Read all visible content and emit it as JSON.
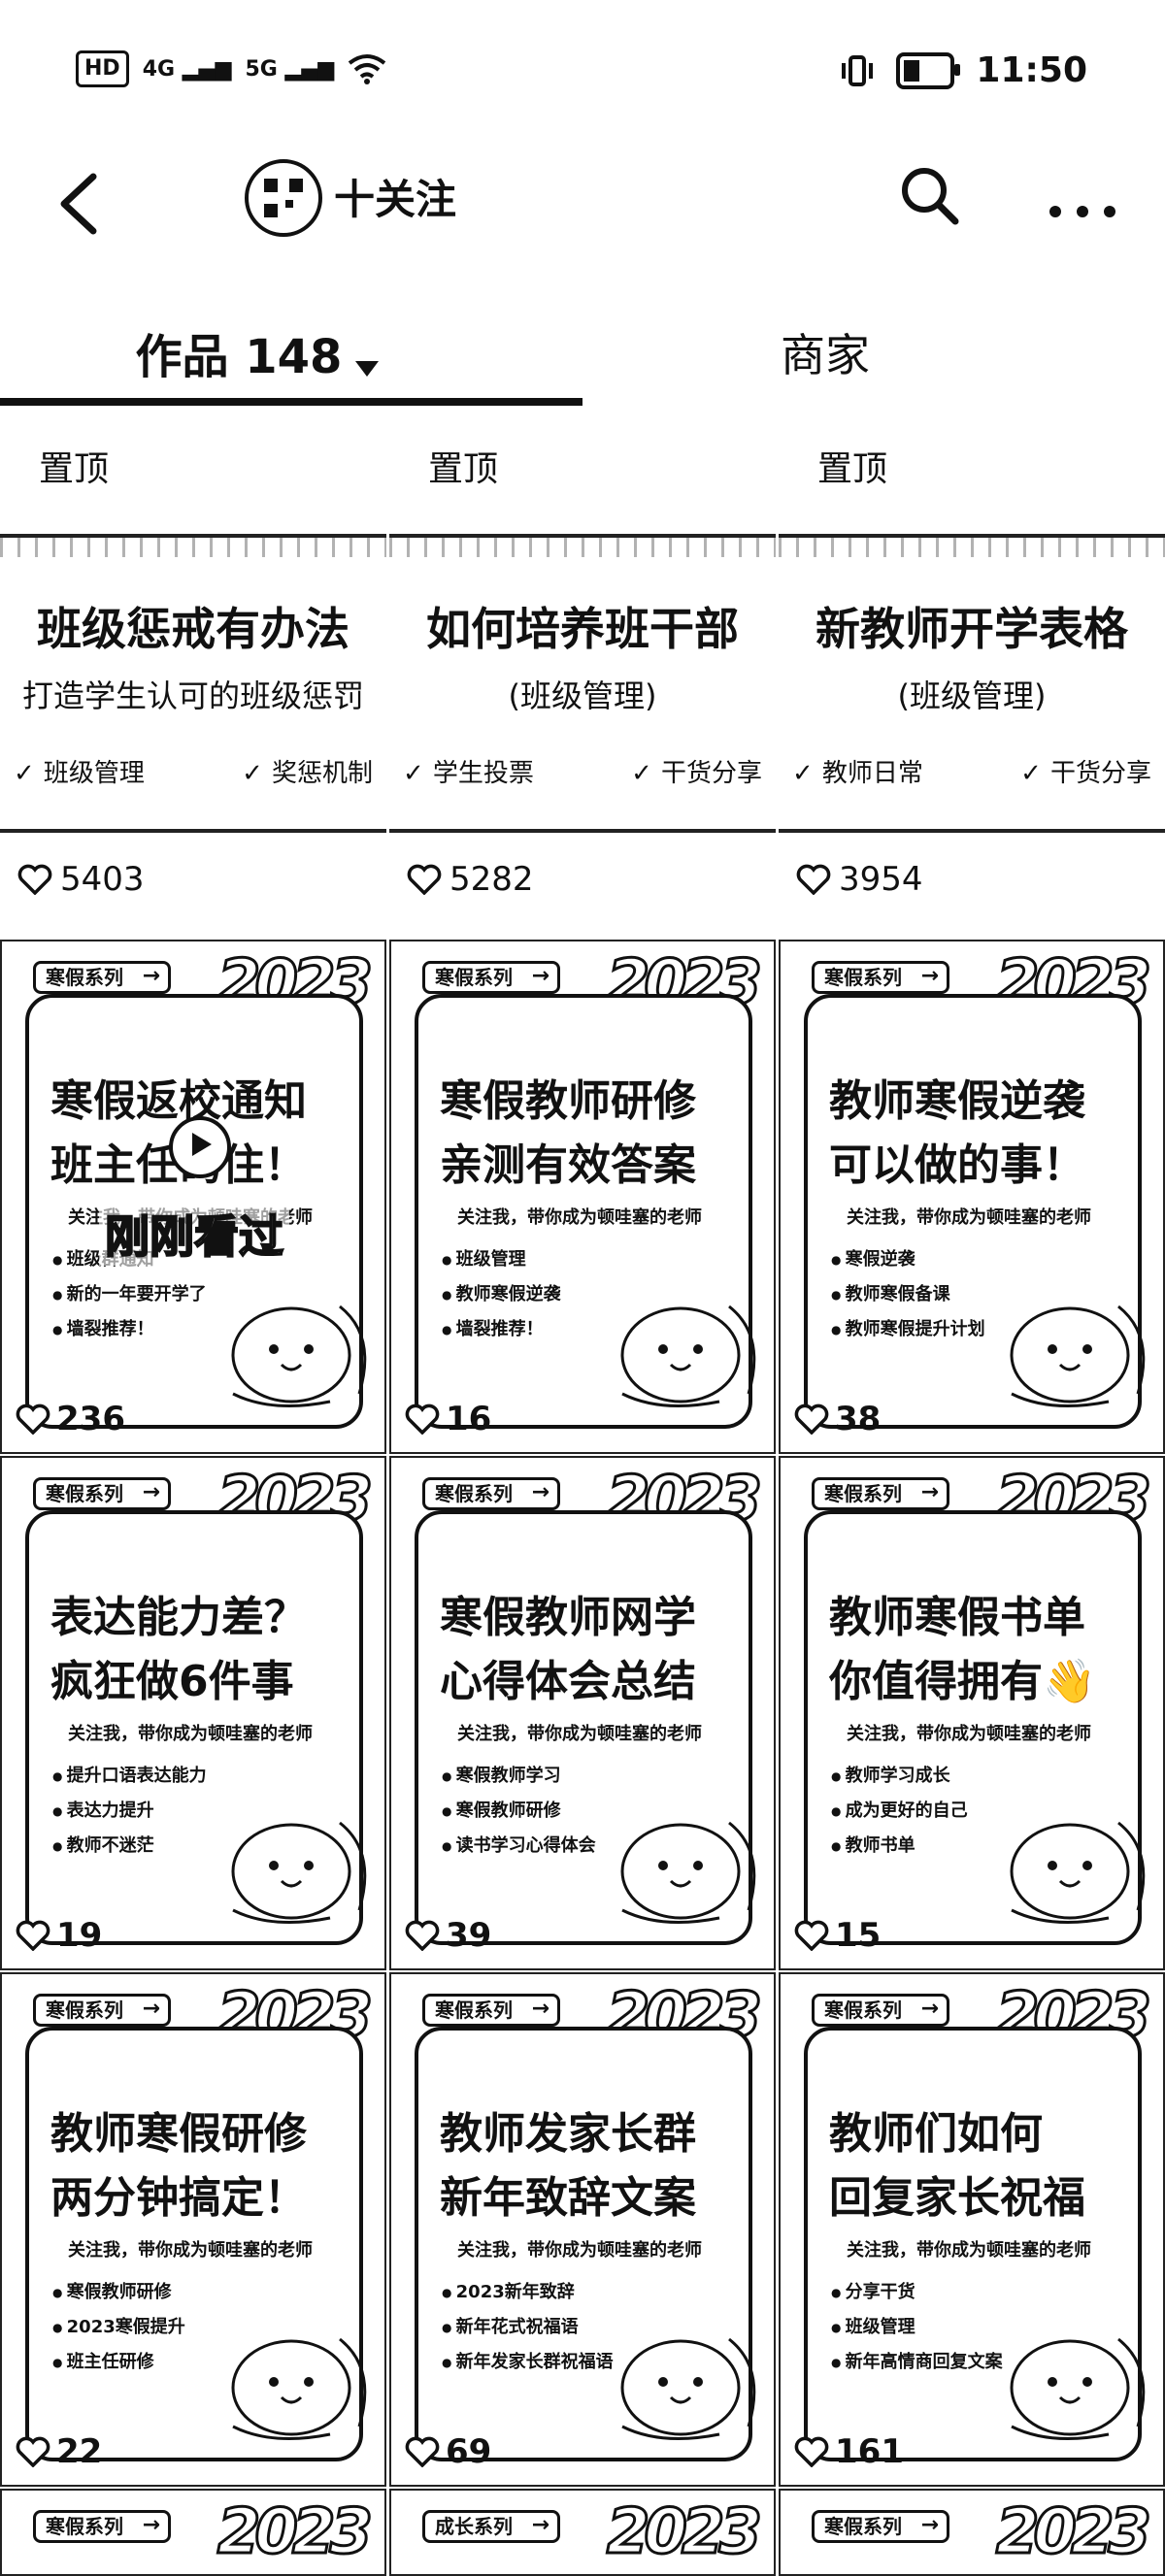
{
  "status_bar": {
    "left": [
      "HD",
      "4G",
      "5G"
    ],
    "time": "11:50"
  },
  "header": {
    "follow_label": "十关注"
  },
  "tabs": {
    "works_label": "作品 148",
    "merchant_label": "商家"
  },
  "pinned": [
    {
      "pin_label": "置顶",
      "title": "班级惩戒有办法",
      "subtitle": "打造学生认可的班级惩罚",
      "tags": [
        "班级管理",
        "奖惩机制"
      ],
      "likes": "5403"
    },
    {
      "pin_label": "置顶",
      "title": "如何培养班干部",
      "subtitle": "(班级管理)",
      "tags": [
        "学生投票",
        "干货分享"
      ],
      "likes": "5282"
    },
    {
      "pin_label": "置顶",
      "title": "新教师开学表格",
      "subtitle": "(班级管理)",
      "tags": [
        "教师日常",
        "干货分享"
      ],
      "likes": "3954"
    }
  ],
  "posts": [
    {
      "series": "寒假系列",
      "line1": "寒假返校通知",
      "line2": "班主任码住！",
      "slogan": "关注我，带你成为顿哇塞的老师",
      "bullets": [
        "班级群通知",
        "新的一年要开学了",
        "墙裂推荐！"
      ],
      "likes": "236",
      "overlay": "刚刚看过"
    },
    {
      "series": "寒假系列",
      "line1": "寒假教师研修",
      "line2": "亲测有效答案",
      "slogan": "关注我，带你成为顿哇塞的老师",
      "bullets": [
        "班级管理",
        "教师寒假逆袭",
        "墙裂推荐！"
      ],
      "likes": "16"
    },
    {
      "series": "寒假系列",
      "line1": "教师寒假逆袭",
      "line2": "可以做的事！",
      "slogan": "关注我，带你成为顿哇塞的老师",
      "bullets": [
        "寒假逆袭",
        "教师寒假备课",
        "教师寒假提升计划"
      ],
      "likes": "38"
    },
    {
      "series": "寒假系列",
      "line1": "表达能力差？",
      "line2": "疯狂做6件事",
      "slogan": "关注我，带你成为顿哇塞的老师",
      "bullets": [
        "提升口语表达能力",
        "表达力提升",
        "教师不迷茫"
      ],
      "likes": "19"
    },
    {
      "series": "寒假系列",
      "line1": "寒假教师网学",
      "line2": "心得体会总结",
      "slogan": "关注我，带你成为顿哇塞的老师",
      "bullets": [
        "寒假教师学习",
        "寒假教师研修",
        "读书学习心得体会"
      ],
      "likes": "39"
    },
    {
      "series": "寒假系列",
      "line1": "教师寒假书单",
      "line2": "你值得拥有👋",
      "slogan": "关注我，带你成为顿哇塞的老师",
      "bullets": [
        "教师学习成长",
        "成为更好的自己",
        "教师书单"
      ],
      "likes": "15"
    },
    {
      "series": "寒假系列",
      "line1": "教师寒假研修",
      "line2": "两分钟搞定！",
      "slogan": "关注我，带你成为顿哇塞的老师",
      "bullets": [
        "寒假教师研修",
        "2023寒假提升",
        "班主任研修"
      ],
      "likes": "22"
    },
    {
      "series": "寒假系列",
      "line1": "教师发家长群",
      "line2": "新年致辞文案",
      "slogan": "关注我，带你成为顿哇塞的老师",
      "bullets": [
        "2023新年致辞",
        "新年花式祝福语",
        "新年发家长群祝福语"
      ],
      "likes": "69"
    },
    {
      "series": "寒假系列",
      "line1": "教师们如何",
      "line2": "回复家长祝福",
      "slogan": "关注我，带你成为顿哇塞的老师",
      "bullets": [
        "分享干货",
        "班级管理",
        "新年高情商回复文案"
      ],
      "likes": "161"
    }
  ],
  "partial_row": [
    {
      "series": "寒假系列"
    },
    {
      "series": "成长系列"
    },
    {
      "series": "寒假系列"
    }
  ],
  "deco_text": "2023"
}
